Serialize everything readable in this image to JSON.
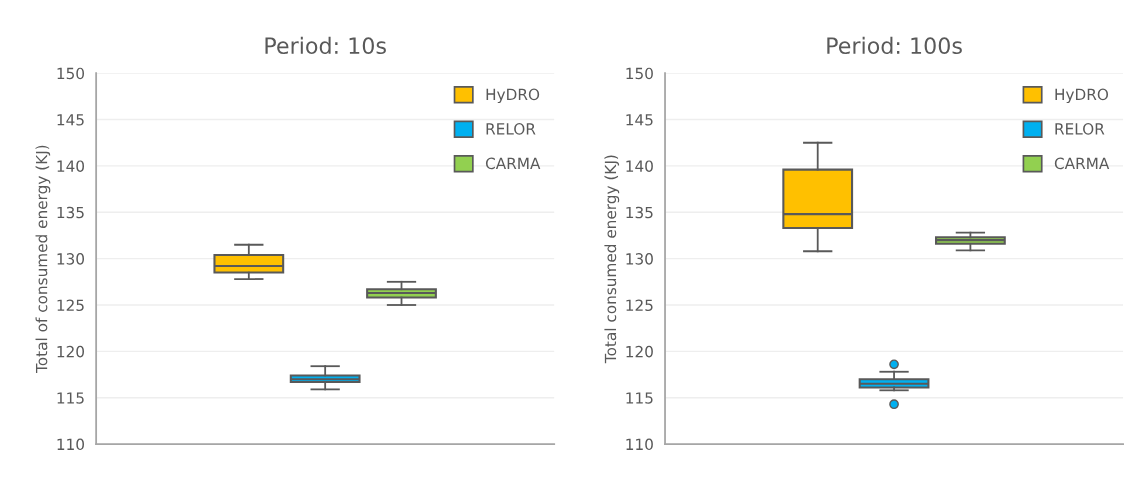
{
  "chart_data": [
    {
      "type": "box",
      "title": "Period: 10s",
      "ylabel": "Total of consumed energy (KJ)",
      "categories": [
        null
      ],
      "ylim": [
        110,
        150
      ],
      "yticks": [
        110,
        115,
        120,
        125,
        130,
        135,
        140,
        145,
        150
      ],
      "grid": "y",
      "legend": "top right",
      "tick_labels": "y",
      "series": [
        {
          "name": "HyDRO",
          "color": "#ffc000",
          "boxes": [
            {
              "low": 127.8,
              "q1": 128.5,
              "median": 129.2,
              "q3": 130.4,
              "high": 131.5
            }
          ]
        },
        {
          "name": "RELOR",
          "color": "#00b0f0",
          "boxes": [
            {
              "low": 115.9,
              "q1": 116.7,
              "median": 117.0,
              "q3": 117.4,
              "high": 118.4
            }
          ]
        },
        {
          "name": "CARMA",
          "color": "#92d050",
          "boxes": [
            {
              "low": 125.0,
              "q1": 125.8,
              "median": 126.3,
              "q3": 126.7,
              "high": 127.5
            }
          ]
        }
      ]
    },
    {
      "type": "box",
      "title": "Period: 100s",
      "ylabel": "Total consumed energy (KJ)",
      "categories": [
        null
      ],
      "ylim": [
        110,
        150
      ],
      "yticks": [
        110,
        115,
        120,
        125,
        130,
        135,
        140,
        145,
        150
      ],
      "grid": "y",
      "legend": "top right",
      "tick_labels": "y",
      "series": [
        {
          "name": "HyDRO",
          "color": "#ffc000",
          "boxes": [
            {
              "low": 130.8,
              "q1": 133.3,
              "median": 134.8,
              "q3": 139.6,
              "high": 142.5
            }
          ]
        },
        {
          "name": "RELOR",
          "color": "#00b0f0",
          "boxes": [
            {
              "low": 115.8,
              "q1": 116.1,
              "median": 116.5,
              "q3": 117.0,
              "high": 117.8,
              "outliers": [
                118.6,
                114.3
              ]
            }
          ]
        },
        {
          "name": "CARMA",
          "color": "#92d050",
          "boxes": [
            {
              "low": 130.9,
              "q1": 131.6,
              "median": 132.0,
              "q3": 132.3,
              "high": 132.8
            }
          ]
        }
      ]
    }
  ]
}
